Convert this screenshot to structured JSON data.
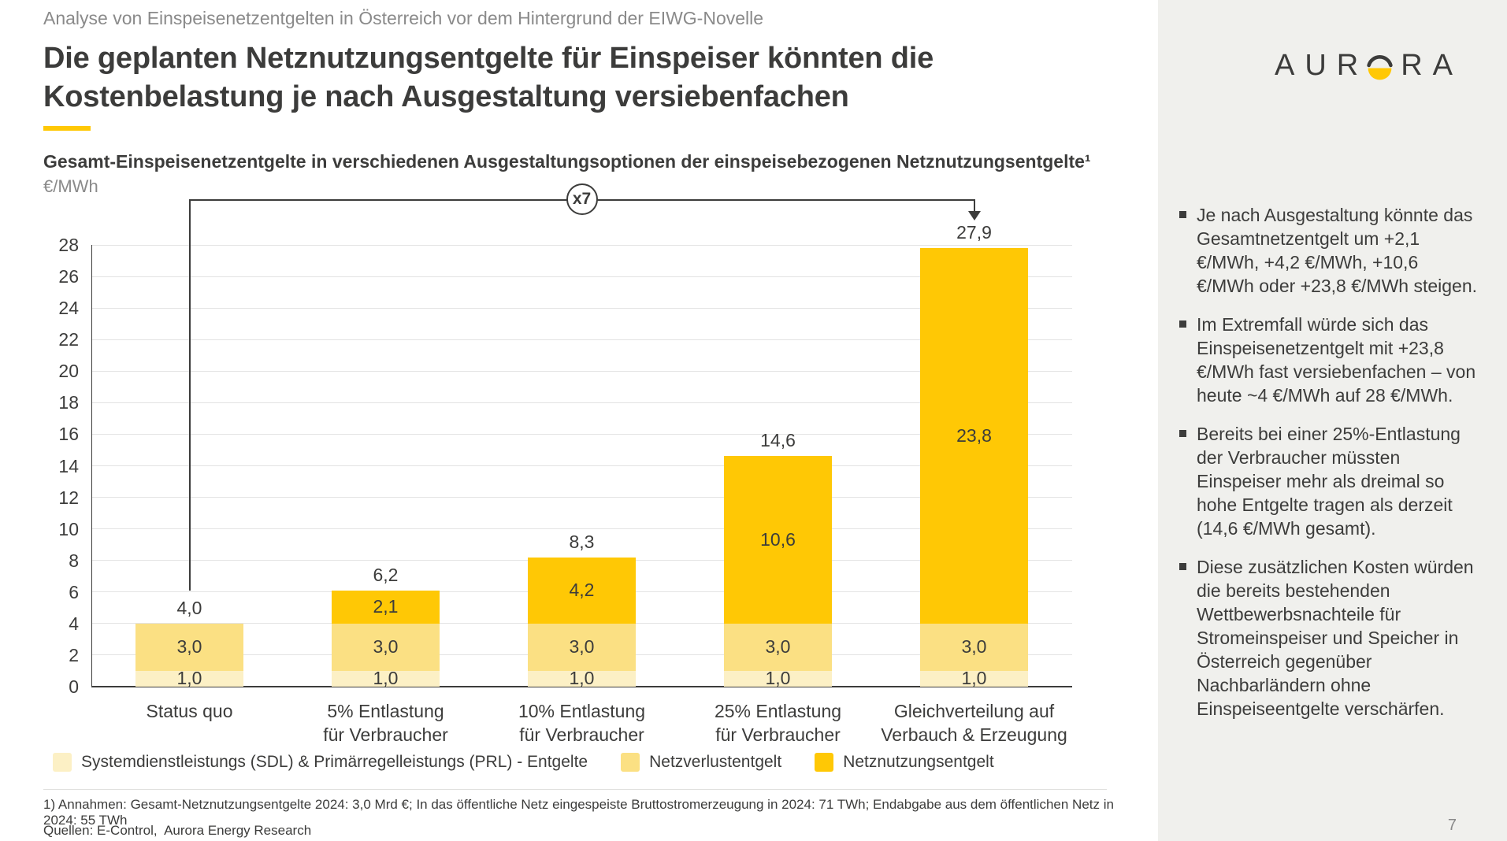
{
  "eyebrow": "Analyse von Einspeisenetzentgelten in Österreich vor dem Hintergrund der EIWG-Novelle",
  "title": "Die geplanten Netznutzungsentgelte für Einspeiser könnten die Kostenbelastung je nach Ausgestaltung versiebenfachen",
  "logo": {
    "left": "AUR",
    "right": "RA"
  },
  "chart_data": {
    "type": "bar",
    "stacked": true,
    "title": "Gesamt-Einspeisenetzentgelte in verschiedenen Ausgestaltungsoptionen der einspeisebezogenen Netznutzungsentgelte¹",
    "unit_label": "€/MWh",
    "categories": [
      "Status quo",
      "5% Entlastung\nfür Verbraucher",
      "10% Entlastung\nfür Verbraucher",
      "25% Entlastung\nfür Verbraucher",
      "Gleichverteilung auf\nVerbauch & Erzeugung"
    ],
    "series": [
      {
        "name": "Systemdienstleistungs (SDL) & Primärregelleistungs (PRL) - Entgelte",
        "color": "#FCF0C5",
        "values": [
          1.0,
          1.0,
          1.0,
          1.0,
          1.0
        ],
        "labels": [
          "1,0",
          "1,0",
          "1,0",
          "1,0",
          "1,0"
        ]
      },
      {
        "name": "Netzverlustentgelt",
        "color": "#FBE083",
        "values": [
          3.0,
          3.0,
          3.0,
          3.0,
          3.0
        ],
        "labels": [
          "3,0",
          "3,0",
          "3,0",
          "3,0",
          "3,0"
        ]
      },
      {
        "name": "Netznutzungsentgelt",
        "color": "#FFC805",
        "values": [
          0,
          2.1,
          4.2,
          10.6,
          23.8
        ],
        "labels": [
          "",
          "2,1",
          "4,2",
          "10,6",
          "23,8"
        ]
      }
    ],
    "totals": [
      "4,0",
      "6,2",
      "8,3",
      "14,6",
      "27,9"
    ],
    "ylim": [
      0,
      28
    ],
    "yticks": [
      0,
      2,
      4,
      6,
      8,
      10,
      12,
      14,
      16,
      18,
      20,
      22,
      24,
      26,
      28
    ],
    "annotation": "x7",
    "grid": true,
    "legend_position": "bottom"
  },
  "sidebar": {
    "bullets": [
      "Je nach Ausgestaltung könnte das Gesamtnetzentgelt um +2,1 €/MWh, +4,2 €/MWh, +10,6 €/MWh oder +23,8 €/MWh steigen.",
      "Im Extremfall würde sich das Einspeisenetzentgelt mit +23,8 €/MWh fast versiebenfachen – von heute ~4 €/MWh auf 28 €/MWh.",
      "Bereits bei einer 25%-Entlastung der Verbraucher müssten Einspeiser mehr als dreimal so hohe Entgelte tragen als derzeit (14,6 €/MWh gesamt).",
      "Diese zusätzlichen Kosten würden die bereits bestehenden Wettbewerbsnachteile für Stromeinspeiser und Speicher in Österreich gegenüber Nachbarländern ohne Einspeiseentgelte verschärfen."
    ]
  },
  "footnote": "1) Annahmen: Gesamt-Netznutzungsentgelte 2024: 3,0 Mrd €; In das öffentliche Netz eingespeiste Bruttostromerzeugung in 2024: 71 TWh; Endabgabe aus dem öffentlichen Netz in 2024: 55 TWh",
  "sources": "Quellen: E-Control,  Aurora Energy Research",
  "page_number": "7",
  "colors": {
    "accent": "#FFC805",
    "text": "#3C3C3B",
    "muted": "#8A8A8A",
    "sidebar_bg": "#F0F0ED",
    "gridline": "#E3E3E3"
  }
}
